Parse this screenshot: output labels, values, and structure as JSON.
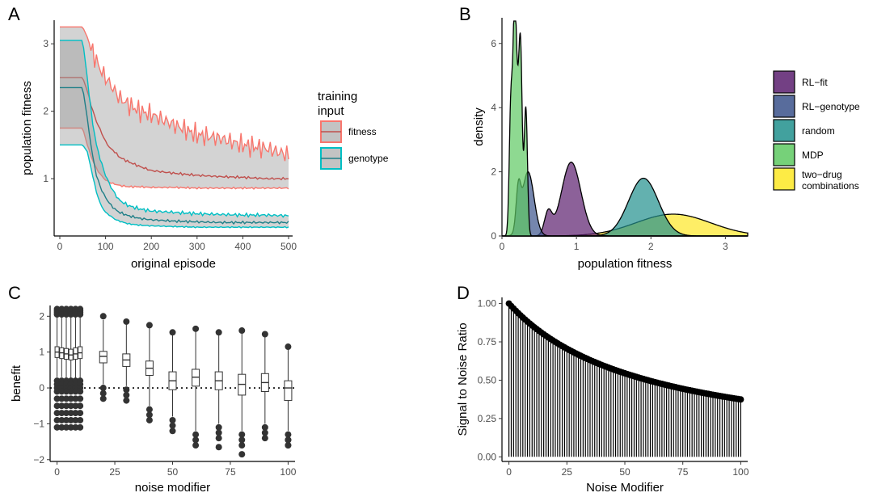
{
  "chart_data": [
    {
      "panel": "A",
      "type": "area",
      "xlabel": "original episode",
      "ylabel": "population fitness",
      "xlim": [
        0,
        500
      ],
      "ylim": [
        0.15,
        3.35
      ],
      "xticks": [
        "0",
        "100",
        "200",
        "300",
        "400",
        "500"
      ],
      "yticks": [
        "1",
        "2",
        "3"
      ],
      "legend": {
        "title": "training\ninput",
        "title_line1": "training",
        "title_line2": "input",
        "position": "right"
      },
      "series": [
        {
          "name": "fitness",
          "color": "#f8766d",
          "x": [
            0,
            50,
            60,
            70,
            80,
            90,
            100,
            110,
            120,
            130,
            150,
            175,
            200,
            250,
            300,
            350,
            400,
            450,
            500
          ],
          "mean": [
            2.5,
            2.5,
            2.3,
            2.05,
            1.85,
            1.7,
            1.55,
            1.45,
            1.4,
            1.32,
            1.25,
            1.18,
            1.12,
            1.08,
            1.05,
            1.03,
            1.02,
            1.0,
            1.0
          ],
          "upper": [
            3.25,
            3.25,
            3.1,
            2.9,
            2.75,
            2.6,
            2.5,
            2.4,
            2.3,
            2.2,
            2.1,
            2.0,
            1.95,
            1.8,
            1.65,
            1.6,
            1.5,
            1.45,
            1.35
          ],
          "lower": [
            1.75,
            1.75,
            1.5,
            1.3,
            1.15,
            1.05,
            0.98,
            0.94,
            0.92,
            0.9,
            0.88,
            0.88,
            0.87,
            0.87,
            0.86,
            0.86,
            0.86,
            0.86,
            0.86
          ]
        },
        {
          "name": "genotype",
          "color": "#00bfc4",
          "x": [
            0,
            50,
            60,
            70,
            80,
            90,
            100,
            110,
            120,
            130,
            150,
            175,
            200,
            250,
            300,
            350,
            400,
            450,
            500
          ],
          "mean": [
            2.35,
            2.35,
            1.9,
            1.4,
            1.05,
            0.85,
            0.72,
            0.62,
            0.55,
            0.5,
            0.45,
            0.41,
            0.39,
            0.37,
            0.36,
            0.35,
            0.35,
            0.35,
            0.35
          ],
          "upper": [
            3.05,
            3.05,
            2.5,
            1.9,
            1.5,
            1.25,
            1.05,
            0.9,
            0.78,
            0.68,
            0.6,
            0.55,
            0.52,
            0.5,
            0.48,
            0.47,
            0.46,
            0.46,
            0.45
          ],
          "lower": [
            1.5,
            1.5,
            1.4,
            1.1,
            0.8,
            0.6,
            0.5,
            0.45,
            0.4,
            0.37,
            0.33,
            0.31,
            0.3,
            0.29,
            0.28,
            0.28,
            0.28,
            0.28,
            0.28
          ]
        }
      ]
    },
    {
      "panel": "B",
      "type": "density",
      "xlabel": "population fitness",
      "ylabel": "density",
      "xlim": [
        0,
        3.3
      ],
      "ylim": [
        0,
        6.8
      ],
      "xticks": [
        "0",
        "1",
        "2",
        "3"
      ],
      "yticks": [
        "0",
        "2",
        "4",
        "6"
      ],
      "legend_position": "right",
      "series": [
        {
          "name": "RL−fit",
          "color": "#5b1e6e",
          "peak_x": 0.93,
          "sd": 0.13,
          "peak": 2.3
        },
        {
          "name": "RL−genotype",
          "color": "#3b528b",
          "peak_x": 0.35,
          "sd": 0.08,
          "peak": 2.0
        },
        {
          "name": "random",
          "color": "#21908d",
          "peak_x": 1.9,
          "sd": 0.2,
          "peak": 1.8
        },
        {
          "name": "MDP",
          "color": "#5ec962",
          "peak_x": 0.2,
          "sd": 0.06,
          "peak": 6.7
        },
        {
          "name": "two−drug",
          "name_line2": " combinations",
          "color": "#fde725",
          "peak_x": 2.3,
          "sd": 0.5,
          "peak": 0.68
        }
      ]
    },
    {
      "panel": "C",
      "type": "box",
      "xlabel": "noise modifier",
      "ylabel": "benefit",
      "xlim": [
        -3,
        103
      ],
      "ylim": [
        -2.05,
        2.3
      ],
      "xticks": [
        "0",
        "25",
        "50",
        "75",
        "100"
      ],
      "yticks": [
        "−2",
        "−1",
        "0",
        "1",
        "2"
      ],
      "reference_line": 0,
      "boxes": [
        {
          "x": 0,
          "q1": 0.85,
          "median": 1.0,
          "q3": 1.15,
          "lo": 0.3,
          "hi": 2.0
        },
        {
          "x": 2,
          "q1": 0.82,
          "median": 0.98,
          "q3": 1.12,
          "lo": 0.3,
          "hi": 2.0
        },
        {
          "x": 4,
          "q1": 0.8,
          "median": 0.95,
          "q3": 1.1,
          "lo": 0.25,
          "hi": 2.0
        },
        {
          "x": 6,
          "q1": 0.78,
          "median": 0.92,
          "q3": 1.08,
          "lo": 0.2,
          "hi": 2.0
        },
        {
          "x": 8,
          "q1": 0.8,
          "median": 0.95,
          "q3": 1.12,
          "lo": 0.2,
          "hi": 2.0
        },
        {
          "x": 10,
          "q1": 0.82,
          "median": 0.98,
          "q3": 1.15,
          "lo": 0.25,
          "hi": 2.0
        },
        {
          "x": 20,
          "q1": 0.7,
          "median": 0.88,
          "q3": 1.02,
          "lo": 0.1,
          "hi": 1.9
        },
        {
          "x": 30,
          "q1": 0.6,
          "median": 0.78,
          "q3": 0.95,
          "lo": 0.05,
          "hi": 1.8
        },
        {
          "x": 40,
          "q1": 0.35,
          "median": 0.55,
          "q3": 0.75,
          "lo": -0.5,
          "hi": 1.7
        },
        {
          "x": 50,
          "q1": -0.05,
          "median": 0.2,
          "q3": 0.45,
          "lo": -0.8,
          "hi": 1.5
        },
        {
          "x": 60,
          "q1": 0.05,
          "median": 0.3,
          "q3": 0.52,
          "lo": -1.2,
          "hi": 1.6
        },
        {
          "x": 70,
          "q1": -0.05,
          "median": 0.2,
          "q3": 0.45,
          "lo": -1.0,
          "hi": 1.5
        },
        {
          "x": 80,
          "q1": -0.2,
          "median": 0.1,
          "q3": 0.38,
          "lo": -1.2,
          "hi": 1.55
        },
        {
          "x": 90,
          "q1": -0.1,
          "median": 0.15,
          "q3": 0.4,
          "lo": -1.0,
          "hi": 1.45
        },
        {
          "x": 100,
          "q1": -0.35,
          "median": 0.0,
          "q3": 0.2,
          "lo": -1.2,
          "hi": 1.1
        }
      ]
    },
    {
      "panel": "D",
      "type": "lollipop",
      "xlabel": "Noise Modifier",
      "ylabel": "Signal to Noise Ratio",
      "xlim": [
        -3,
        103
      ],
      "ylim": [
        -0.03,
        1.04
      ],
      "xticks": [
        "0",
        "25",
        "50",
        "75",
        "100"
      ],
      "yticks": [
        "0.00",
        "0.25",
        "0.50",
        "0.75",
        "1.00"
      ],
      "function": "1/(1+0.0167*x)",
      "x_range": [
        0,
        100
      ],
      "n_points": 101,
      "first_value": 1.0,
      "last_value": 0.37
    }
  ]
}
